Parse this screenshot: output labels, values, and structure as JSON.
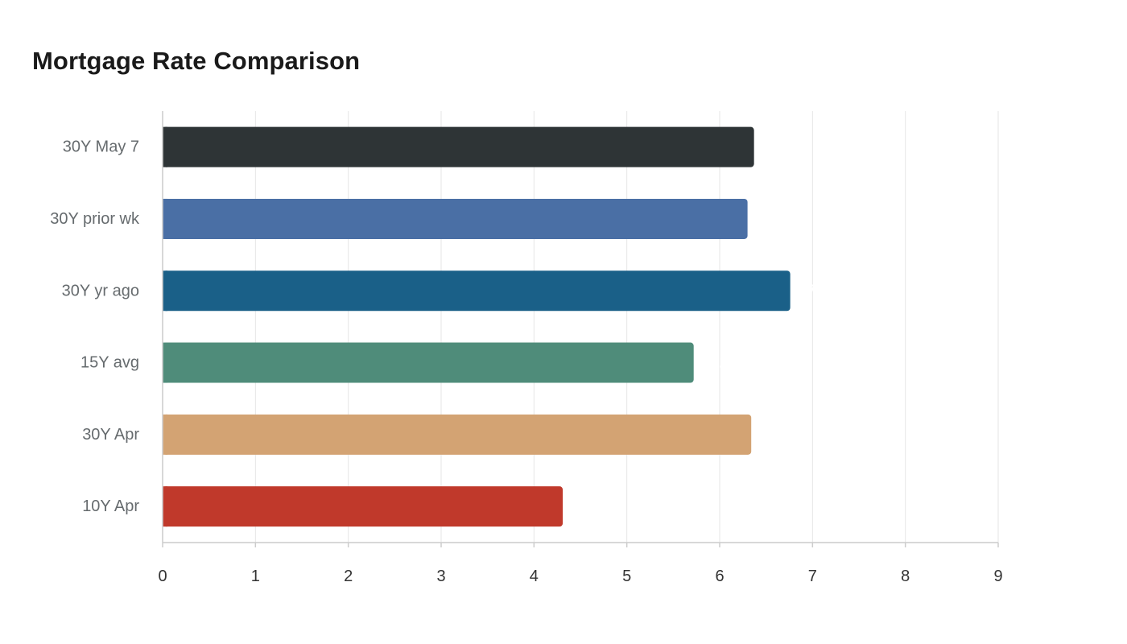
{
  "chart_data": {
    "type": "bar",
    "orientation": "horizontal",
    "title": "Mortgage Rate Comparison",
    "xlabel": "",
    "ylabel": "",
    "categories": [
      "30Y May 7",
      "30Y prior wk",
      "30Y yr ago",
      "15Y avg",
      "30Y Apr",
      "10Y Apr"
    ],
    "values": [
      6.37,
      6.3,
      6.76,
      5.72,
      6.34,
      4.31
    ],
    "colors": [
      "#2e3436",
      "#4a6fa5",
      "#1a6088",
      "#4f8c7a",
      "#d3a373",
      "#c0392b"
    ],
    "xlim": [
      0,
      9
    ],
    "xticks": [
      0,
      1,
      2,
      3,
      4,
      5,
      6,
      7,
      8,
      9
    ],
    "grid": "vertical",
    "legend": "none"
  }
}
